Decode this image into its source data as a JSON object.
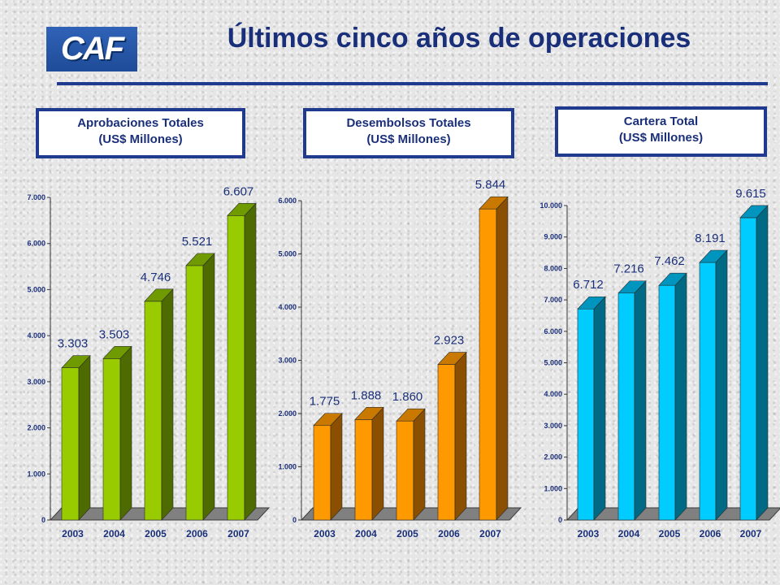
{
  "logo": {
    "text": "CAF"
  },
  "page_title": "Últimos cinco años de operaciones",
  "panels": [
    {
      "line1": "Aprobaciones Totales",
      "line2": "(US$ Millones)"
    },
    {
      "line1": "Desembolsos Totales",
      "line2": "(US$ Millones)"
    },
    {
      "line1": "Cartera Total",
      "line2": "(US$ Millones)"
    }
  ],
  "chart_data": [
    {
      "type": "bar",
      "title": "Aprobaciones Totales (US$ Millones)",
      "categories": [
        "2003",
        "2004",
        "2005",
        "2006",
        "2007"
      ],
      "values": [
        3303,
        3503,
        4746,
        5521,
        6607
      ],
      "value_labels": [
        "3.303",
        "3.503",
        "4.746",
        "5.521",
        "6.607"
      ],
      "ylim": [
        0,
        7000
      ],
      "yticks": [
        "0",
        "1.000",
        "2.000",
        "3.000",
        "4.000",
        "5.000",
        "6.000",
        "7.000"
      ],
      "colors": {
        "front": "#99cc00",
        "side": "#4d6b00",
        "top": "#6f9a00"
      }
    },
    {
      "type": "bar",
      "title": "Desembolsos Totales (US$ Millones)",
      "categories": [
        "2003",
        "2004",
        "2005",
        "2006",
        "2007"
      ],
      "values": [
        1775,
        1888,
        1860,
        2923,
        5844
      ],
      "value_labels": [
        "1.775",
        "1.888",
        "1.860",
        "2.923",
        "5.844"
      ],
      "ylim": [
        0,
        6000
      ],
      "yticks": [
        "0",
        "1.000",
        "2.000",
        "3.000",
        "4.000",
        "5.000",
        "6.000"
      ],
      "colors": {
        "front": "#ff9900",
        "side": "#8a4f00",
        "top": "#c97800"
      }
    },
    {
      "type": "bar",
      "title": "Cartera Total (US$ Millones)",
      "categories": [
        "2003",
        "2004",
        "2005",
        "2006",
        "2007"
      ],
      "values": [
        6712,
        7216,
        7462,
        8191,
        9615
      ],
      "value_labels": [
        "6.712",
        "7.216",
        "7.462",
        "8.191",
        "9.615"
      ],
      "ylim": [
        0,
        10000
      ],
      "yticks": [
        "0",
        "1.000",
        "2.000",
        "3.000",
        "4.000",
        "5.000",
        "6.000",
        "7.000",
        "8.000",
        "9.000",
        "10.000"
      ],
      "colors": {
        "front": "#00ccff",
        "side": "#006a85",
        "top": "#0095bf"
      }
    }
  ],
  "colors": {
    "title": "#1a2f7a",
    "frame": "#1f3a8f",
    "floor": "#808080",
    "background": "#e6e6e6"
  }
}
